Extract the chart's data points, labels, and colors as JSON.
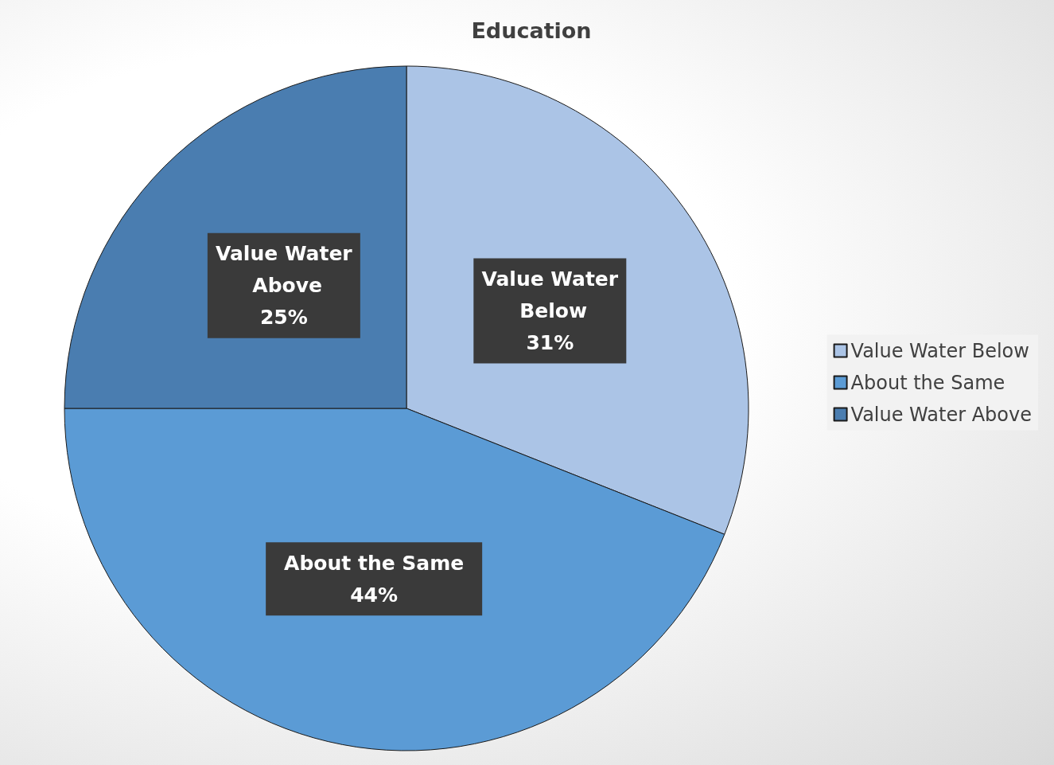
{
  "chart_data": {
    "type": "pie",
    "title": "Education",
    "categories": [
      "Value Water Below",
      "About the Same",
      "Value Water Above"
    ],
    "values": [
      31,
      44,
      25
    ],
    "colors": [
      "#abc4e6",
      "#5b9bd5",
      "#4a7db0"
    ],
    "value_labels": [
      "31%",
      "44%",
      "25%"
    ],
    "legend": "right"
  }
}
